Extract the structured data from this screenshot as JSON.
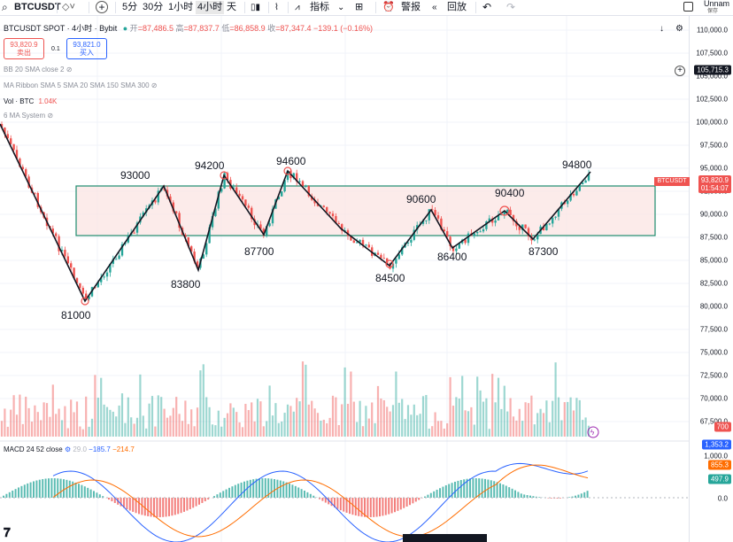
{
  "toolbar": {
    "symbol": "BTCUSDT",
    "intervals": [
      "5分",
      "30分",
      "1小时",
      "4小时",
      "天"
    ],
    "active_interval": "4小时",
    "indicators_label": "指标",
    "alert_label": "警报",
    "replay_label": "回放",
    "user_name": "Unnam",
    "save_label": "保存"
  },
  "header": {
    "title": "BTCUSDT SPOT · 4小时 · Bybit",
    "open_label": "开",
    "open": "=87,486.5",
    "high_label": "高",
    "high": "=87,837.7",
    "low_label": "低",
    "low": "=86,858.9",
    "close_label": "收",
    "close": "=87,347.4",
    "change": "−139.1 (−0.16%)"
  },
  "order": {
    "sell_price": "93,820.9",
    "sell_label": "卖出",
    "spread": "0.1",
    "buy_price": "93,821.0",
    "buy_label": "买入"
  },
  "indicators": {
    "bb": "BB 20 SMA close 2",
    "ma_ribbon": "MA Ribbon SMA 5 SMA 20 SMA 150 SMA 300",
    "vol_name": "Vol · BTC",
    "vol_value": "1.04K",
    "ma_system": "6 MA System",
    "macd_name": "MACD 24 52 close",
    "macd_hist": "29.0",
    "macd_line": "−185.7",
    "macd_signal": "−214.7"
  },
  "price_axis": {
    "ticks": [
      "110,000.0",
      "107,500.0",
      "105,000.0",
      "102,500.0",
      "100,000.0",
      "97,500.0",
      "95,000.0",
      "92,500.0",
      "90,000.0",
      "87,500.0",
      "85,000.0",
      "82,500.0",
      "80,000.0",
      "77,500.0",
      "75,000.0",
      "72,500.0",
      "70,000.0",
      "67,500.0"
    ],
    "crosshair_price": "105,715.3",
    "last_symbol": "BTCUSDT",
    "last_price": "93,820.9",
    "countdown": "01:54:07",
    "volume_badge": "700",
    "macd_ticks": [
      "1,000.0",
      "0.0"
    ],
    "macd_badges": [
      "1,353.2",
      "855.3",
      "497.9"
    ]
  },
  "annotations": [
    "93000",
    "94200",
    "94600",
    "90600",
    "90400",
    "94800",
    "81000",
    "83800",
    "87700",
    "84500",
    "86400",
    "87300"
  ],
  "colors": {
    "up": "#26a69a",
    "down": "#ef5350",
    "accent": "#2962ff",
    "range_fill": "#fbe3e1",
    "range_border": "#1e8c6e"
  }
}
